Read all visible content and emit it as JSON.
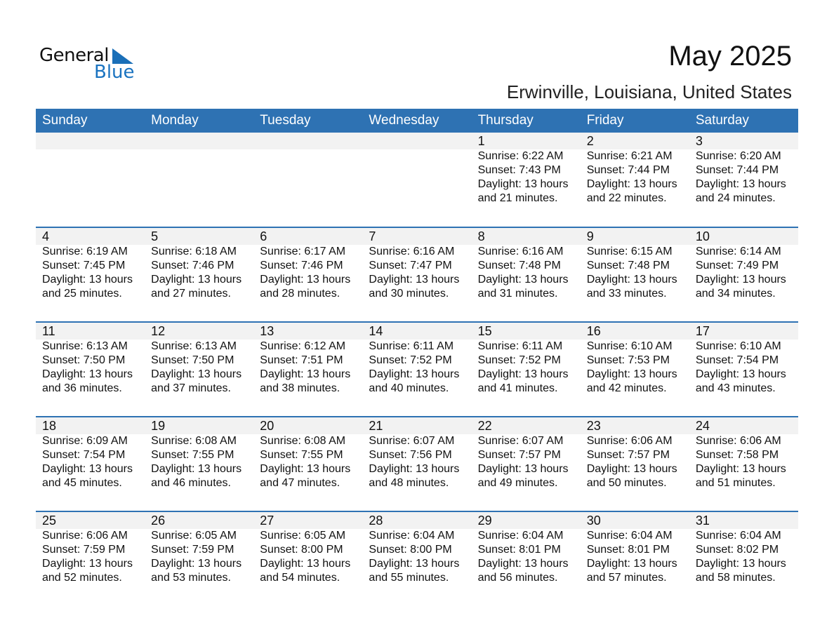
{
  "logo": {
    "word1": "General",
    "word2": "Blue"
  },
  "header": {
    "title": "May 2025",
    "location": "Erwinville, Louisiana, United States"
  },
  "colors": {
    "accent": "#2e72b3",
    "band": "#f2f2f2"
  },
  "weekdays": [
    "Sunday",
    "Monday",
    "Tuesday",
    "Wednesday",
    "Thursday",
    "Friday",
    "Saturday"
  ],
  "weeks": [
    [
      null,
      null,
      null,
      null,
      {
        "day": "1",
        "sunrise": "Sunrise: 6:22 AM",
        "sunset": "Sunset: 7:43 PM",
        "daylight": "Daylight: 13 hours",
        "minutes": "and 21 minutes."
      },
      {
        "day": "2",
        "sunrise": "Sunrise: 6:21 AM",
        "sunset": "Sunset: 7:44 PM",
        "daylight": "Daylight: 13 hours",
        "minutes": "and 22 minutes."
      },
      {
        "day": "3",
        "sunrise": "Sunrise: 6:20 AM",
        "sunset": "Sunset: 7:44 PM",
        "daylight": "Daylight: 13 hours",
        "minutes": "and 24 minutes."
      }
    ],
    [
      {
        "day": "4",
        "sunrise": "Sunrise: 6:19 AM",
        "sunset": "Sunset: 7:45 PM",
        "daylight": "Daylight: 13 hours",
        "minutes": "and 25 minutes."
      },
      {
        "day": "5",
        "sunrise": "Sunrise: 6:18 AM",
        "sunset": "Sunset: 7:46 PM",
        "daylight": "Daylight: 13 hours",
        "minutes": "and 27 minutes."
      },
      {
        "day": "6",
        "sunrise": "Sunrise: 6:17 AM",
        "sunset": "Sunset: 7:46 PM",
        "daylight": "Daylight: 13 hours",
        "minutes": "and 28 minutes."
      },
      {
        "day": "7",
        "sunrise": "Sunrise: 6:16 AM",
        "sunset": "Sunset: 7:47 PM",
        "daylight": "Daylight: 13 hours",
        "minutes": "and 30 minutes."
      },
      {
        "day": "8",
        "sunrise": "Sunrise: 6:16 AM",
        "sunset": "Sunset: 7:48 PM",
        "daylight": "Daylight: 13 hours",
        "minutes": "and 31 minutes."
      },
      {
        "day": "9",
        "sunrise": "Sunrise: 6:15 AM",
        "sunset": "Sunset: 7:48 PM",
        "daylight": "Daylight: 13 hours",
        "minutes": "and 33 minutes."
      },
      {
        "day": "10",
        "sunrise": "Sunrise: 6:14 AM",
        "sunset": "Sunset: 7:49 PM",
        "daylight": "Daylight: 13 hours",
        "minutes": "and 34 minutes."
      }
    ],
    [
      {
        "day": "11",
        "sunrise": "Sunrise: 6:13 AM",
        "sunset": "Sunset: 7:50 PM",
        "daylight": "Daylight: 13 hours",
        "minutes": "and 36 minutes."
      },
      {
        "day": "12",
        "sunrise": "Sunrise: 6:13 AM",
        "sunset": "Sunset: 7:50 PM",
        "daylight": "Daylight: 13 hours",
        "minutes": "and 37 minutes."
      },
      {
        "day": "13",
        "sunrise": "Sunrise: 6:12 AM",
        "sunset": "Sunset: 7:51 PM",
        "daylight": "Daylight: 13 hours",
        "minutes": "and 38 minutes."
      },
      {
        "day": "14",
        "sunrise": "Sunrise: 6:11 AM",
        "sunset": "Sunset: 7:52 PM",
        "daylight": "Daylight: 13 hours",
        "minutes": "and 40 minutes."
      },
      {
        "day": "15",
        "sunrise": "Sunrise: 6:11 AM",
        "sunset": "Sunset: 7:52 PM",
        "daylight": "Daylight: 13 hours",
        "minutes": "and 41 minutes."
      },
      {
        "day": "16",
        "sunrise": "Sunrise: 6:10 AM",
        "sunset": "Sunset: 7:53 PM",
        "daylight": "Daylight: 13 hours",
        "minutes": "and 42 minutes."
      },
      {
        "day": "17",
        "sunrise": "Sunrise: 6:10 AM",
        "sunset": "Sunset: 7:54 PM",
        "daylight": "Daylight: 13 hours",
        "minutes": "and 43 minutes."
      }
    ],
    [
      {
        "day": "18",
        "sunrise": "Sunrise: 6:09 AM",
        "sunset": "Sunset: 7:54 PM",
        "daylight": "Daylight: 13 hours",
        "minutes": "and 45 minutes."
      },
      {
        "day": "19",
        "sunrise": "Sunrise: 6:08 AM",
        "sunset": "Sunset: 7:55 PM",
        "daylight": "Daylight: 13 hours",
        "minutes": "and 46 minutes."
      },
      {
        "day": "20",
        "sunrise": "Sunrise: 6:08 AM",
        "sunset": "Sunset: 7:55 PM",
        "daylight": "Daylight: 13 hours",
        "minutes": "and 47 minutes."
      },
      {
        "day": "21",
        "sunrise": "Sunrise: 6:07 AM",
        "sunset": "Sunset: 7:56 PM",
        "daylight": "Daylight: 13 hours",
        "minutes": "and 48 minutes."
      },
      {
        "day": "22",
        "sunrise": "Sunrise: 6:07 AM",
        "sunset": "Sunset: 7:57 PM",
        "daylight": "Daylight: 13 hours",
        "minutes": "and 49 minutes."
      },
      {
        "day": "23",
        "sunrise": "Sunrise: 6:06 AM",
        "sunset": "Sunset: 7:57 PM",
        "daylight": "Daylight: 13 hours",
        "minutes": "and 50 minutes."
      },
      {
        "day": "24",
        "sunrise": "Sunrise: 6:06 AM",
        "sunset": "Sunset: 7:58 PM",
        "daylight": "Daylight: 13 hours",
        "minutes": "and 51 minutes."
      }
    ],
    [
      {
        "day": "25",
        "sunrise": "Sunrise: 6:06 AM",
        "sunset": "Sunset: 7:59 PM",
        "daylight": "Daylight: 13 hours",
        "minutes": "and 52 minutes."
      },
      {
        "day": "26",
        "sunrise": "Sunrise: 6:05 AM",
        "sunset": "Sunset: 7:59 PM",
        "daylight": "Daylight: 13 hours",
        "minutes": "and 53 minutes."
      },
      {
        "day": "27",
        "sunrise": "Sunrise: 6:05 AM",
        "sunset": "Sunset: 8:00 PM",
        "daylight": "Daylight: 13 hours",
        "minutes": "and 54 minutes."
      },
      {
        "day": "28",
        "sunrise": "Sunrise: 6:04 AM",
        "sunset": "Sunset: 8:00 PM",
        "daylight": "Daylight: 13 hours",
        "minutes": "and 55 minutes."
      },
      {
        "day": "29",
        "sunrise": "Sunrise: 6:04 AM",
        "sunset": "Sunset: 8:01 PM",
        "daylight": "Daylight: 13 hours",
        "minutes": "and 56 minutes."
      },
      {
        "day": "30",
        "sunrise": "Sunrise: 6:04 AM",
        "sunset": "Sunset: 8:01 PM",
        "daylight": "Daylight: 13 hours",
        "minutes": "and 57 minutes."
      },
      {
        "day": "31",
        "sunrise": "Sunrise: 6:04 AM",
        "sunset": "Sunset: 8:02 PM",
        "daylight": "Daylight: 13 hours",
        "minutes": "and 58 minutes."
      }
    ]
  ]
}
